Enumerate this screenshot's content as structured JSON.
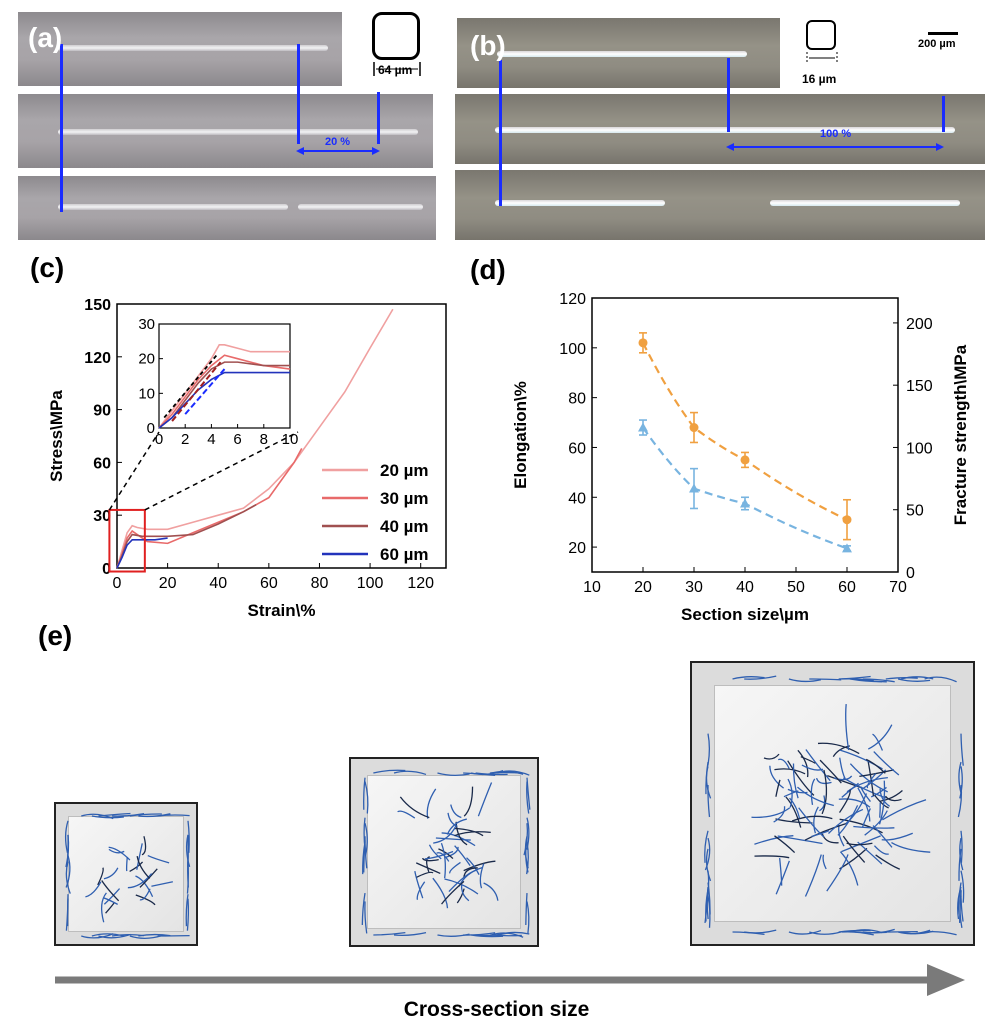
{
  "panels": {
    "a": "(a)",
    "b": "(b)",
    "c": "(c)",
    "d": "(d)",
    "e": "(e)"
  },
  "panel_a": {
    "size_label": "64 µm",
    "strain_label": "20 %"
  },
  "panel_b": {
    "size_label": "16 µm",
    "scale_label": "200 µm",
    "strain_label": "100 %"
  },
  "panel_e": {
    "arrow_label": "Cross-section size"
  },
  "colors": {
    "s20": "#f0a0a0",
    "s30": "#e86a6a",
    "s40": "#a05050",
    "s60": "#2233bb",
    "elongation": "#f0a040",
    "strength": "#78b4e0",
    "zoom_box": "#e02020",
    "fiber": "#2f5fb0"
  },
  "chart_data": [
    {
      "id": "c",
      "type": "line",
      "xlabel": "Strain\\%",
      "ylabel": "Stress\\MPa",
      "xlim": [
        0,
        130
      ],
      "ylim": [
        0,
        150
      ],
      "xticks": [
        "0",
        "20",
        "40",
        "60",
        "80",
        "100",
        "120"
      ],
      "yticks": [
        "0",
        "30",
        "60",
        "90",
        "120",
        "150"
      ],
      "legend_position": "right",
      "series": [
        {
          "name": "20 µm",
          "color": "#f0a0a0",
          "x": [
            0,
            2,
            4,
            6,
            8,
            12,
            20,
            30,
            40,
            50,
            60,
            70,
            80,
            90,
            100,
            109
          ],
          "y": [
            0,
            10,
            20,
            24,
            23,
            22,
            22,
            26,
            30,
            34,
            45,
            60,
            80,
            100,
            125,
            147
          ]
        },
        {
          "name": "30 µm",
          "color": "#e86a6a",
          "x": [
            0,
            2,
            4,
            6,
            8,
            12,
            20,
            30,
            40,
            50,
            60,
            65,
            70,
            73
          ],
          "y": [
            0,
            8,
            17,
            21,
            19,
            15,
            14,
            20,
            26,
            32,
            40,
            50,
            60,
            68
          ]
        },
        {
          "name": "40 µm",
          "color": "#a05050",
          "x": [
            0,
            2,
            4,
            6,
            10,
            20,
            30,
            40,
            50,
            55
          ],
          "y": [
            0,
            7,
            15,
            19,
            18,
            18,
            19,
            25,
            32,
            36
          ]
        },
        {
          "name": "60 µm",
          "color": "#2233bb",
          "x": [
            0,
            2,
            4,
            6,
            10,
            15,
            20
          ],
          "y": [
            0,
            6,
            13,
            16,
            16,
            16,
            17
          ]
        }
      ],
      "inset": {
        "xlim": [
          0,
          10
        ],
        "ylim": [
          0,
          30
        ],
        "xticks": [
          "0",
          "2",
          "4",
          "6",
          "8",
          "10"
        ],
        "yticks": [
          "0",
          "10",
          "20",
          "30"
        ],
        "series": [
          {
            "color": "#f0a0a0",
            "x": [
              0,
              1,
              2,
              3,
              4,
              4.6,
              5,
              6,
              7,
              8,
              10
            ],
            "y": [
              0,
              5,
              10,
              15,
              20,
              24,
              24,
              23,
              22,
              22,
              22
            ]
          },
          {
            "color": "#e86a6a",
            "x": [
              0,
              1,
              2,
              3,
              4,
              5,
              6,
              7,
              8,
              10
            ],
            "y": [
              0,
              4,
              9,
              14,
              18,
              21,
              20,
              19,
              18,
              17
            ]
          },
          {
            "color": "#a05050",
            "x": [
              0,
              1,
              2,
              3,
              4,
              5,
              6,
              8,
              10
            ],
            "y": [
              0,
              3,
              8,
              13,
              17,
              19,
              19,
              18,
              18
            ]
          },
          {
            "color": "#2233bb",
            "x": [
              0,
              1,
              2,
              3,
              4,
              5,
              6,
              8,
              10
            ],
            "y": [
              0,
              3,
              7,
              11,
              14,
              16,
              16,
              16,
              16
            ]
          }
        ]
      }
    },
    {
      "id": "d",
      "type": "scatter",
      "xlabel": "Section size\\µm",
      "ylabel": "Elongation\\%",
      "y2label": "Fracture strength\\MPa",
      "xlim": [
        10,
        70
      ],
      "ylim": [
        10,
        120
      ],
      "y2lim": [
        0,
        220
      ],
      "xticks": [
        "10",
        "20",
        "30",
        "40",
        "50",
        "60",
        "70"
      ],
      "yticks": [
        "20",
        "40",
        "60",
        "80",
        "100",
        "120"
      ],
      "y2ticks": [
        "0",
        "50",
        "100",
        "150",
        "200"
      ],
      "series": [
        {
          "axis": "left",
          "color": "#f0a040",
          "x": [
            20,
            30,
            40,
            60
          ],
          "y": [
            102,
            68,
            55,
            31
          ],
          "err": [
            4,
            6,
            3,
            8
          ]
        },
        {
          "axis": "right",
          "color": "#78b4e0",
          "x": [
            20,
            30,
            40,
            60
          ],
          "y": [
            116,
            67,
            55,
            19
          ],
          "err": [
            6,
            16,
            5,
            2
          ]
        }
      ]
    }
  ]
}
